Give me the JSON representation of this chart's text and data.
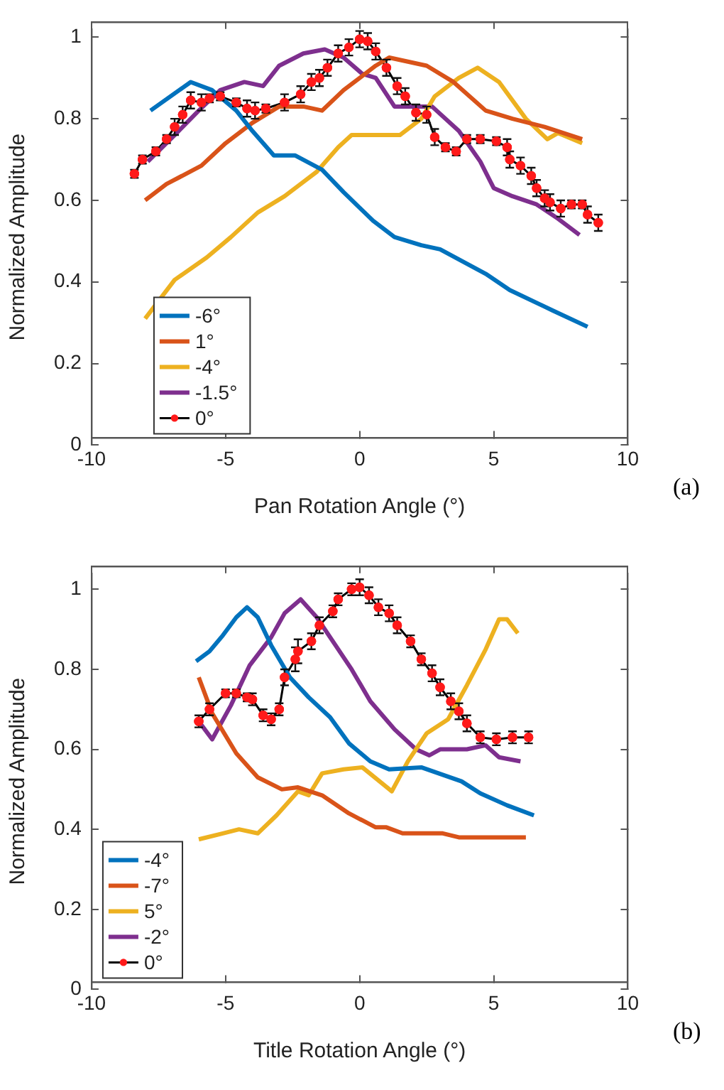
{
  "chart_data": [
    {
      "type": "line",
      "xlabel": "Pan Rotation Angle (°)",
      "ylabel": "Normalized Amplitude",
      "xlim": [
        -10,
        10
      ],
      "ylim": [
        0,
        1.02
      ],
      "xticks": [
        -10,
        -5,
        0,
        5,
        10
      ],
      "yticks": [
        0,
        0.2,
        0.4,
        0.6,
        0.8,
        1
      ],
      "grid": false,
      "legend": "bottom left",
      "marker": "none",
      "line_style": "solid",
      "annotations": [
        "(a)"
      ],
      "series": [
        {
          "name": "-6°",
          "color": "#0072bd",
          "x": [
            -7.8,
            -6.3,
            -5.5,
            -4.6,
            -4.0,
            -3.2,
            -2.4,
            -1.4,
            -0.6,
            0.5,
            1.3,
            2.3,
            3.0,
            4.7,
            5.6,
            7.2,
            8.5
          ],
          "values": [
            0.82,
            0.89,
            0.87,
            0.82,
            0.77,
            0.71,
            0.71,
            0.675,
            0.62,
            0.55,
            0.51,
            0.49,
            0.48,
            0.42,
            0.38,
            0.33,
            0.29
          ]
        },
        {
          "name": "1°",
          "color": "#d95319",
          "x": [
            -8.0,
            -7.2,
            -5.9,
            -5.0,
            -4.0,
            -3.0,
            -2.1,
            -1.4,
            -0.6,
            0.6,
            1.1,
            2.5,
            3.5,
            4.7,
            5.7,
            6.9,
            8.3
          ],
          "values": [
            0.6,
            0.64,
            0.685,
            0.74,
            0.79,
            0.83,
            0.83,
            0.82,
            0.87,
            0.93,
            0.95,
            0.93,
            0.89,
            0.82,
            0.8,
            0.78,
            0.75
          ]
        },
        {
          "name": "-4°",
          "color": "#edb120",
          "x": [
            -8.0,
            -6.9,
            -5.7,
            -4.8,
            -3.8,
            -2.8,
            -1.6,
            -0.8,
            -0.3,
            1.5,
            2.3,
            2.8,
            3.7,
            4.4,
            5.2,
            6.2,
            7.0,
            7.4,
            8.3
          ],
          "values": [
            0.31,
            0.405,
            0.46,
            0.51,
            0.57,
            0.61,
            0.67,
            0.73,
            0.76,
            0.76,
            0.8,
            0.855,
            0.9,
            0.925,
            0.89,
            0.8,
            0.75,
            0.765,
            0.74
          ]
        },
        {
          "name": "-1.5°",
          "color": "#7e2f8e",
          "x": [
            -7.9,
            -6.9,
            -6.0,
            -5.2,
            -4.3,
            -3.6,
            -3.0,
            -2.1,
            -1.3,
            -0.6,
            0.1,
            0.6,
            1.3,
            2.7,
            3.7,
            4.5,
            5.0,
            5.7,
            6.6,
            7.4,
            8.2
          ],
          "values": [
            0.695,
            0.76,
            0.82,
            0.87,
            0.89,
            0.88,
            0.93,
            0.96,
            0.97,
            0.95,
            0.91,
            0.9,
            0.83,
            0.83,
            0.77,
            0.695,
            0.63,
            0.61,
            0.59,
            0.555,
            0.515
          ]
        },
        {
          "name": "0°",
          "color": "#000000",
          "marker": "circle",
          "x": [
            -8.4,
            -8.1,
            -7.6,
            -7.2,
            -6.9,
            -6.6,
            -6.3,
            -5.9,
            -5.6,
            -5.2,
            -4.6,
            -4.2,
            -3.9,
            -3.5,
            -2.8,
            -2.2,
            -1.8,
            -1.5,
            -1.2,
            -0.8,
            -0.4,
            0.0,
            0.3,
            0.6,
            1.0,
            1.4,
            1.7,
            2.1,
            2.5,
            2.8,
            3.2,
            3.6,
            4.0,
            4.5,
            5.1,
            5.5,
            5.6,
            6.0,
            6.4,
            6.6,
            6.9,
            7.1,
            7.5,
            7.9,
            8.3,
            8.5,
            8.9
          ],
          "values": [
            0.665,
            0.7,
            0.72,
            0.75,
            0.78,
            0.81,
            0.845,
            0.84,
            0.85,
            0.855,
            0.84,
            0.825,
            0.82,
            0.825,
            0.84,
            0.86,
            0.89,
            0.9,
            0.925,
            0.96,
            0.975,
            0.995,
            0.99,
            0.965,
            0.925,
            0.88,
            0.855,
            0.815,
            0.81,
            0.755,
            0.73,
            0.72,
            0.75,
            0.75,
            0.745,
            0.73,
            0.7,
            0.685,
            0.66,
            0.63,
            0.605,
            0.595,
            0.58,
            0.59,
            0.59,
            0.565,
            0.545
          ],
          "errors": [
            0.01,
            0.01,
            0.01,
            0.01,
            0.02,
            0.02,
            0.02,
            0.02,
            0.01,
            0.01,
            0.01,
            0.02,
            0.02,
            0.01,
            0.02,
            0.02,
            0.02,
            0.02,
            0.02,
            0.02,
            0.02,
            0.02,
            0.02,
            0.02,
            0.02,
            0.02,
            0.02,
            0.02,
            0.02,
            0.02,
            0.01,
            0.01,
            0.01,
            0.01,
            0.01,
            0.02,
            0.02,
            0.02,
            0.02,
            0.02,
            0.02,
            0.02,
            0.02,
            0.01,
            0.01,
            0.02,
            0.02
          ]
        }
      ]
    },
    {
      "type": "line",
      "xlabel": "Title Rotation Angle (°)",
      "ylabel": "Normalized Amplitude",
      "xlim": [
        -10,
        10
      ],
      "ylim": [
        0,
        1.04
      ],
      "xticks": [
        -10,
        -5,
        0,
        5,
        10
      ],
      "yticks": [
        0,
        0.2,
        0.4,
        0.6,
        0.8,
        1
      ],
      "grid": false,
      "legend": "bottom left",
      "marker": "none",
      "line_style": "solid",
      "annotations": [
        "(b)"
      ],
      "series": [
        {
          "name": "-4°",
          "color": "#0072bd",
          "x": [
            -6.1,
            -5.6,
            -5.1,
            -4.6,
            -4.2,
            -3.8,
            -3.3,
            -2.6,
            -1.9,
            -1.1,
            -0.4,
            0.4,
            1.1,
            2.3,
            3.8,
            4.5,
            5.5,
            6.5
          ],
          "values": [
            0.82,
            0.845,
            0.885,
            0.93,
            0.955,
            0.93,
            0.86,
            0.78,
            0.73,
            0.68,
            0.615,
            0.57,
            0.55,
            0.555,
            0.52,
            0.49,
            0.46,
            0.435
          ]
        },
        {
          "name": "-7°",
          "color": "#d95319",
          "x": [
            -6.0,
            -5.5,
            -4.6,
            -3.8,
            -2.9,
            -2.3,
            -1.4,
            -0.4,
            0.6,
            1.0,
            1.6,
            3.1,
            3.7,
            6.2
          ],
          "values": [
            0.78,
            0.69,
            0.59,
            0.53,
            0.5,
            0.505,
            0.485,
            0.44,
            0.405,
            0.405,
            0.39,
            0.39,
            0.38,
            0.38
          ]
        },
        {
          "name": "5°",
          "color": "#edb120",
          "x": [
            -6.0,
            -5.1,
            -4.5,
            -3.8,
            -3.1,
            -2.3,
            -1.9,
            -1.4,
            -0.6,
            0.1,
            1.2,
            1.8,
            2.5,
            3.3,
            4.0,
            4.7,
            5.2,
            5.5,
            5.9
          ],
          "values": [
            0.375,
            0.39,
            0.4,
            0.39,
            0.435,
            0.495,
            0.485,
            0.54,
            0.55,
            0.555,
            0.495,
            0.57,
            0.64,
            0.675,
            0.76,
            0.85,
            0.925,
            0.925,
            0.89
          ]
        },
        {
          "name": "-2°",
          "color": "#7e2f8e",
          "x": [
            -6.0,
            -5.5,
            -4.8,
            -4.1,
            -3.3,
            -2.8,
            -2.2,
            -1.6,
            -0.9,
            -0.3,
            0.4,
            1.3,
            2.1,
            2.6,
            3.0,
            4.0,
            4.7,
            5.2,
            6.0
          ],
          "values": [
            0.67,
            0.625,
            0.71,
            0.81,
            0.88,
            0.94,
            0.975,
            0.93,
            0.86,
            0.8,
            0.72,
            0.65,
            0.6,
            0.585,
            0.6,
            0.6,
            0.61,
            0.58,
            0.57
          ]
        },
        {
          "name": "0°",
          "color": "#000000",
          "marker": "circle",
          "x": [
            -6.0,
            -5.6,
            -5.0,
            -4.6,
            -4.2,
            -4.0,
            -3.6,
            -3.3,
            -3.0,
            -2.8,
            -2.4,
            -2.3,
            -1.8,
            -1.5,
            -1.0,
            -0.8,
            -0.3,
            0.0,
            0.35,
            0.7,
            1.1,
            1.4,
            1.9,
            2.3,
            2.7,
            3.0,
            3.4,
            3.7,
            4.0,
            4.5,
            5.1,
            5.7,
            6.3
          ],
          "values": [
            0.67,
            0.7,
            0.74,
            0.74,
            0.73,
            0.725,
            0.685,
            0.675,
            0.7,
            0.78,
            0.825,
            0.845,
            0.87,
            0.91,
            0.945,
            0.975,
            1.0,
            1.005,
            0.985,
            0.955,
            0.94,
            0.91,
            0.87,
            0.825,
            0.79,
            0.755,
            0.72,
            0.695,
            0.665,
            0.63,
            0.625,
            0.63,
            0.63
          ],
          "errors": [
            0.015,
            0.015,
            0.01,
            0.01,
            0.01,
            0.015,
            0.015,
            0.015,
            0.015,
            0.02,
            0.03,
            0.03,
            0.02,
            0.02,
            0.015,
            0.015,
            0.015,
            0.02,
            0.02,
            0.02,
            0.02,
            0.02,
            0.015,
            0.015,
            0.02,
            0.02,
            0.02,
            0.02,
            0.02,
            0.015,
            0.015,
            0.015,
            0.015
          ]
        }
      ]
    }
  ]
}
